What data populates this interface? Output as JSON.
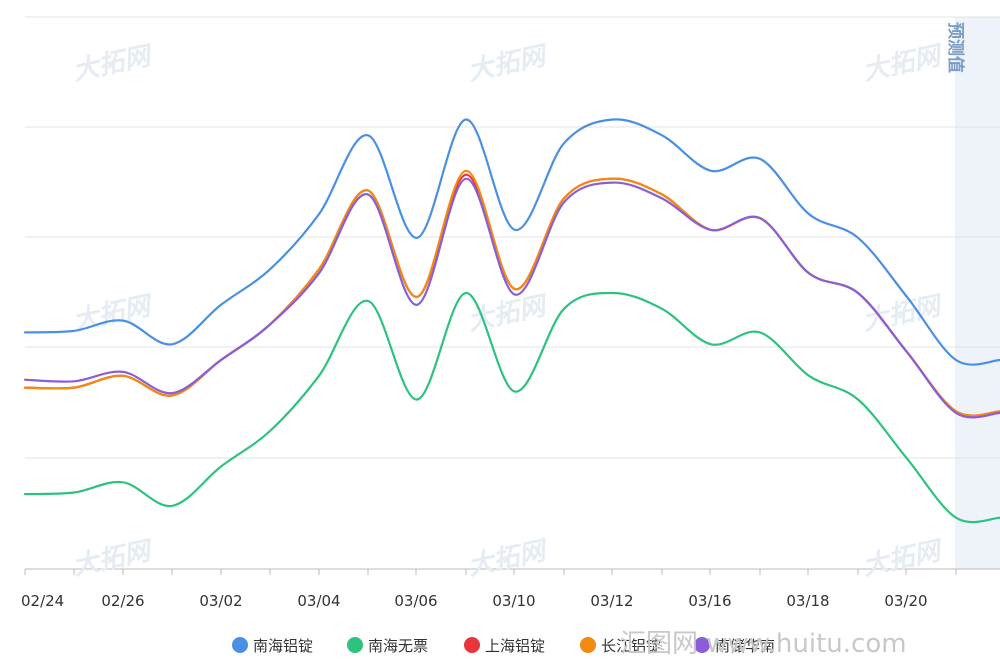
{
  "chart_data": {
    "type": "line",
    "x_tick_labels": [
      "02/24",
      "02/26",
      "03/02",
      "03/04",
      "03/06",
      "03/10",
      "03/12",
      "03/16",
      "03/18",
      "03/20"
    ],
    "forecast_label": "预测值",
    "watermark_text": "大拓网",
    "footer_watermark": "汇图网 www.huitu.com",
    "series": [
      {
        "name": "南海铝锭",
        "color": "#4a90e2",
        "values": [
          16,
          16.02,
          16.15,
          15.85,
          16.35,
          16.8,
          17.5,
          18.5,
          17.2,
          18.7,
          17.3,
          18.4,
          18.7,
          18.5,
          18.05,
          18.2,
          17.5,
          17.2,
          16.45,
          15.65,
          15.65
        ]
      },
      {
        "name": "南海无票",
        "color": "#2ec27e",
        "values": [
          13.95,
          13.97,
          14.1,
          13.8,
          14.3,
          14.75,
          15.45,
          16.4,
          15.15,
          16.5,
          15.25,
          16.3,
          16.5,
          16.3,
          15.85,
          16.0,
          15.45,
          15.15,
          14.4,
          13.65,
          13.65
        ]
      },
      {
        "name": "上海铝锭",
        "color": "#e8363b",
        "values": [
          15.3,
          15.3,
          15.45,
          15.2,
          15.65,
          16.1,
          16.8,
          17.8,
          16.45,
          18.0,
          16.55,
          17.7,
          17.95,
          17.75,
          17.3,
          17.45,
          16.75,
          16.5,
          15.75,
          15.0,
          15.0
        ]
      },
      {
        "name": "长江铝锭",
        "color": "#f28a10",
        "values": [
          15.3,
          15.3,
          15.45,
          15.2,
          15.65,
          16.1,
          16.8,
          17.8,
          16.45,
          18.05,
          16.55,
          17.7,
          17.95,
          17.75,
          17.3,
          17.45,
          16.75,
          16.5,
          15.75,
          15.0,
          15.0
        ]
      },
      {
        "name": "南储华南",
        "color": "#8a5ed8",
        "values": [
          15.4,
          15.38,
          15.5,
          15.23,
          15.65,
          16.1,
          16.75,
          17.75,
          16.35,
          17.95,
          16.48,
          17.65,
          17.9,
          17.7,
          17.3,
          17.45,
          16.75,
          16.5,
          15.75,
          14.98,
          14.98
        ]
      }
    ]
  }
}
